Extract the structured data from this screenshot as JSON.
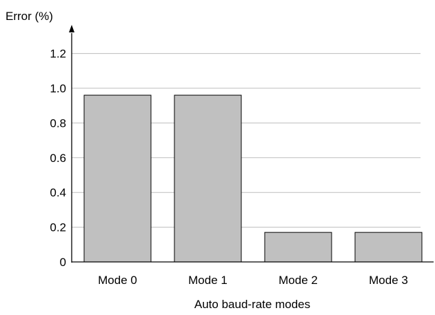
{
  "chart_data": {
    "type": "bar",
    "title": "",
    "ylabel": "Error (%)",
    "xlabel": "Auto baud-rate modes",
    "categories": [
      "Mode 0",
      "Mode 1",
      "Mode 2",
      "Mode 3"
    ],
    "values": [
      0.96,
      0.96,
      0.17,
      0.17
    ],
    "ylim": [
      0,
      1.3
    ],
    "yticks": [
      "0",
      "0.2",
      "0.4",
      "0.6",
      "0.8",
      "1.0",
      "1.2"
    ],
    "ytick_values": [
      0,
      0.2,
      0.4,
      0.6,
      0.8,
      1.0,
      1.2
    ],
    "grid": true,
    "colors": {
      "bar_fill": "#c0c0c0",
      "bar_stroke": "#000000",
      "grid": "#bdbdbd",
      "axis": "#000000"
    }
  }
}
